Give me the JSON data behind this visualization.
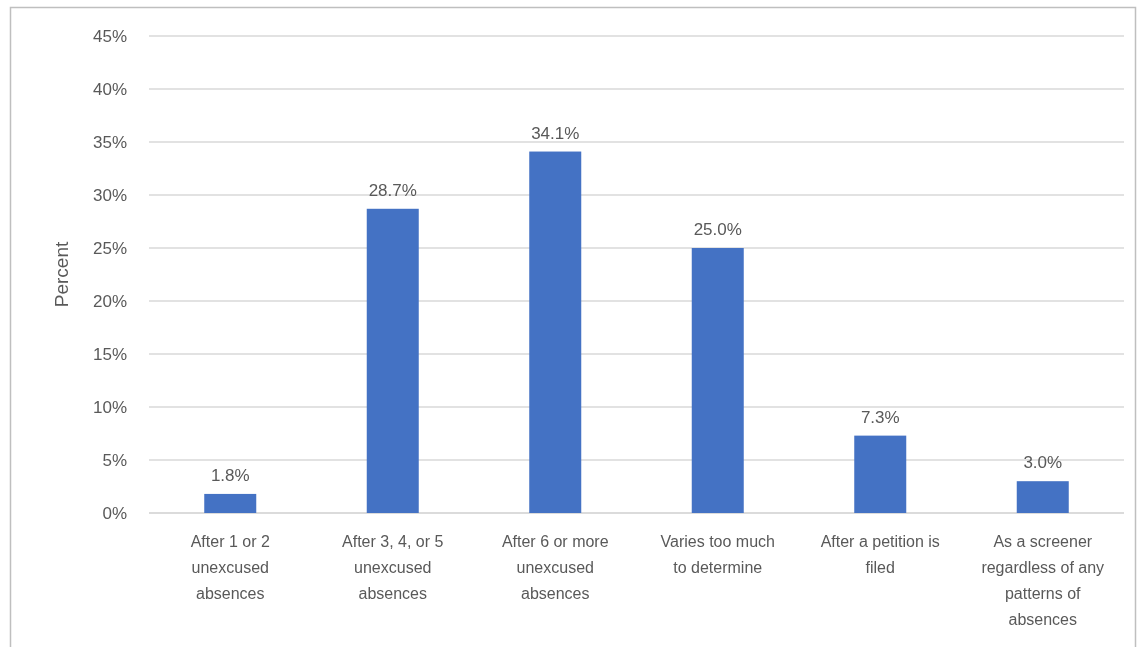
{
  "chart_data": {
    "type": "bar",
    "ylabel": "Percent",
    "categories": [
      "After 1 or 2 unexcused absences",
      "After 3, 4, or 5 unexcused absences",
      "After 6 or more unexcused absences",
      "Varies too much to determine",
      "After a petition is filed",
      "As a screener regardless of any patterns of absences"
    ],
    "values": [
      1.8,
      28.7,
      34.1,
      25.0,
      7.3,
      3.0
    ],
    "value_labels": [
      "1.8%",
      "28.7%",
      "34.1%",
      "25.0%",
      "7.3%",
      "3.0%"
    ],
    "color": "#4472c4",
    "ylim": [
      0,
      45
    ],
    "yticks": [
      {
        "value": 0,
        "label": "0%"
      },
      {
        "value": 5,
        "label": "5%"
      },
      {
        "value": 10,
        "label": "10%"
      },
      {
        "value": 15,
        "label": "15%"
      },
      {
        "value": 20,
        "label": "20%"
      },
      {
        "value": 25,
        "label": "25%"
      },
      {
        "value": 30,
        "label": "30%"
      },
      {
        "value": 35,
        "label": "35%"
      },
      {
        "value": 40,
        "label": "40%"
      },
      {
        "value": 45,
        "label": "45%"
      }
    ],
    "grid": "y"
  }
}
